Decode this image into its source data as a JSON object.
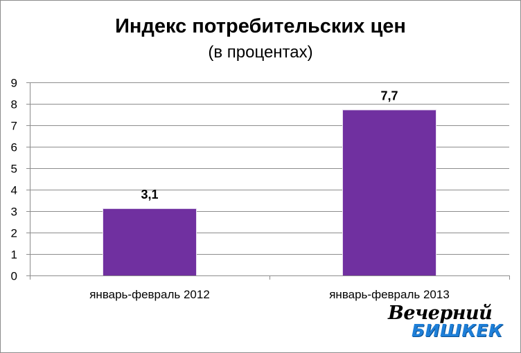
{
  "chart_data": {
    "type": "bar",
    "title": "Индекс потребительских цен",
    "subtitle": "(в процентах)",
    "categories": [
      "январь-февраль 2012",
      "январь-февраль 2013"
    ],
    "values": [
      3.1,
      7.7
    ],
    "data_labels": [
      "3,1",
      "7,7"
    ],
    "ylim": [
      0,
      9
    ],
    "yticks": [
      "0",
      "1",
      "2",
      "3",
      "4",
      "5",
      "6",
      "7",
      "8",
      "9"
    ],
    "grid": true,
    "legend": "none",
    "bar_color": "#7030a0"
  },
  "logo": {
    "line1": "Вечерний",
    "line2": "БИШКЕК"
  }
}
